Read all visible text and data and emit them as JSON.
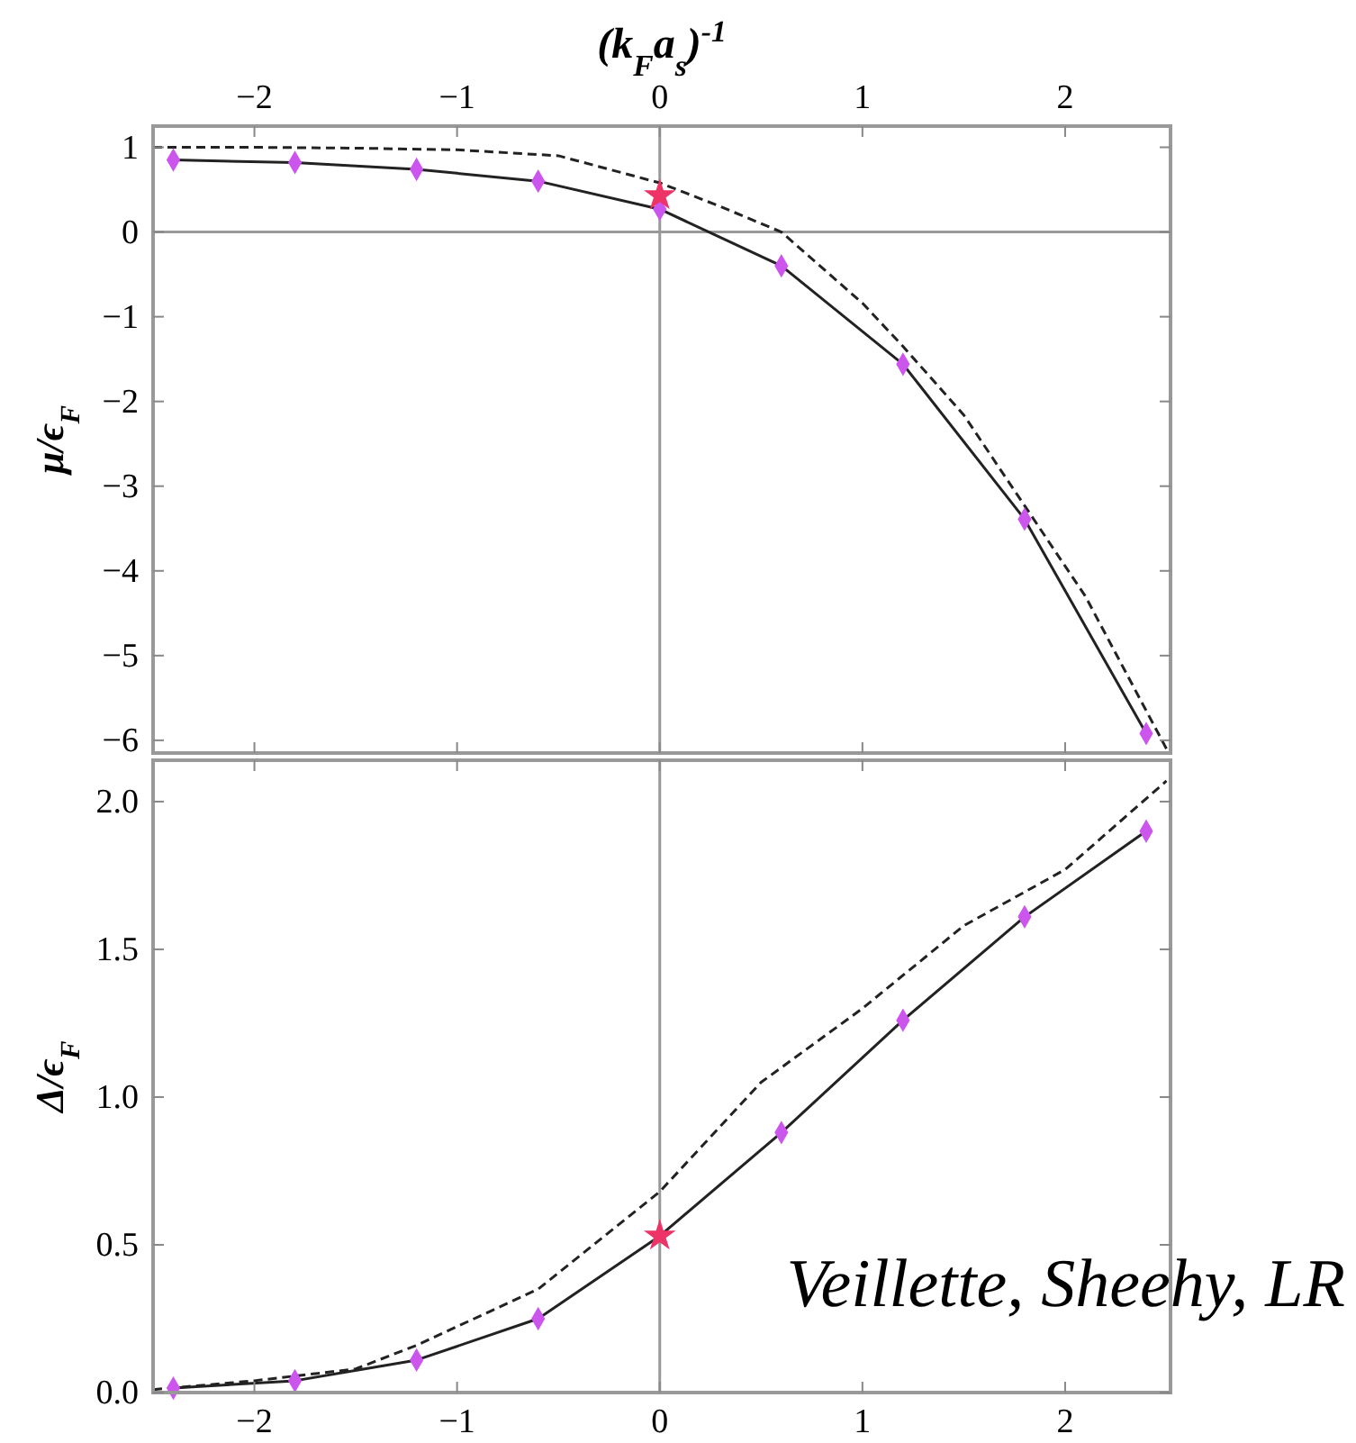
{
  "chart_data": [
    {
      "type": "line",
      "xlabel": "(k$_{F}$a$_{s}$)$^{-1}$",
      "ylabel": "μ/ϵ$_{F}$",
      "xlim": [
        -2.5,
        2.52
      ],
      "ylim": [
        -6.15,
        1.25
      ],
      "xticks": [
        -2,
        -1,
        0,
        1,
        2
      ],
      "yticks": [
        -6,
        -5,
        -4,
        -3,
        -2,
        -1,
        0,
        1
      ],
      "grid": false,
      "ref_lines": [
        {
          "axis": "y",
          "value": 0,
          "color": "#999999"
        },
        {
          "axis": "x",
          "value": 0,
          "color": "#999999"
        }
      ],
      "series": [
        {
          "color": "#222222",
          "line_style": "dashed",
          "x": [
            -2.5,
            -2,
            -1.5,
            -1,
            -0.5,
            0,
            0.3,
            0.6,
            1,
            1.2,
            1.5,
            1.8,
            2.1,
            2.5
          ],
          "values": [
            1.0,
            1.0,
            0.99,
            0.97,
            0.9,
            0.58,
            0.3,
            0.0,
            -0.84,
            -1.35,
            -2.16,
            -3.23,
            -4.3,
            -6.1
          ]
        },
        {
          "color": "#222222",
          "line_style": "solid",
          "x": [
            -2.4,
            -1.8,
            -1.2,
            -0.6,
            0,
            0.6,
            1.2,
            1.8,
            2.4
          ],
          "values": [
            0.85,
            0.82,
            0.74,
            0.6,
            0.27,
            -0.4,
            -1.56,
            -3.39,
            -5.92
          ]
        },
        {
          "type": "scatter",
          "color": "#cc55ee",
          "marker": "diamond",
          "x": [
            -2.4,
            -1.8,
            -1.2,
            -0.6,
            0,
            0.6,
            1.2,
            1.8,
            2.4
          ],
          "values": [
            0.85,
            0.82,
            0.74,
            0.6,
            0.27,
            -0.4,
            -1.56,
            -3.39,
            -5.92
          ]
        },
        {
          "type": "scatter",
          "color": "#ee3366",
          "marker": "star",
          "x": [
            0
          ],
          "values": [
            0.43
          ]
        }
      ]
    },
    {
      "type": "line",
      "ylabel": "Δ/ϵ$_{F}$",
      "xlim": [
        -2.5,
        2.52
      ],
      "ylim": [
        0,
        2.14
      ],
      "xticks": [
        -2,
        -1,
        0,
        1,
        2
      ],
      "yticks": [
        {
          "value": 0,
          "label": "0.0"
        },
        {
          "value": 0.5,
          "label": "0.5"
        },
        {
          "value": 1,
          "label": "1.0"
        },
        {
          "value": 1.5,
          "label": "1.5"
        },
        {
          "value": 2,
          "label": "2.0"
        }
      ],
      "grid": false,
      "ref_lines": [
        {
          "axis": "x",
          "value": 0,
          "color": "#999999"
        }
      ],
      "annotations": [
        "Veillette, Sheehy, LR"
      ],
      "series": [
        {
          "color": "#222222",
          "line_style": "dashed",
          "x": [
            -2.5,
            -2,
            -1.5,
            -1.2,
            -0.6,
            0,
            0.5,
            1,
            1.5,
            2,
            2.5
          ],
          "values": [
            0.01,
            0.04,
            0.08,
            0.16,
            0.35,
            0.68,
            1.05,
            1.3,
            1.58,
            1.77,
            2.07
          ]
        },
        {
          "color": "#222222",
          "line_style": "solid",
          "x": [
            -2.4,
            -1.8,
            -1.2,
            -0.6,
            0,
            0.6,
            1.2,
            1.8,
            2.4
          ],
          "values": [
            0.015,
            0.04,
            0.11,
            0.25,
            0.53,
            0.88,
            1.26,
            1.61,
            1.9
          ]
        },
        {
          "type": "scatter",
          "color": "#cc55ee",
          "marker": "diamond",
          "x": [
            -2.4,
            -1.8,
            -1.2,
            -0.6,
            0.6,
            1.2,
            1.8,
            2.4
          ],
          "values": [
            0.015,
            0.04,
            0.11,
            0.25,
            0.88,
            1.26,
            1.61,
            1.9
          ]
        },
        {
          "type": "scatter",
          "color": "#ee3366",
          "marker": "star",
          "x": [
            0
          ],
          "values": [
            0.53
          ]
        }
      ]
    }
  ]
}
